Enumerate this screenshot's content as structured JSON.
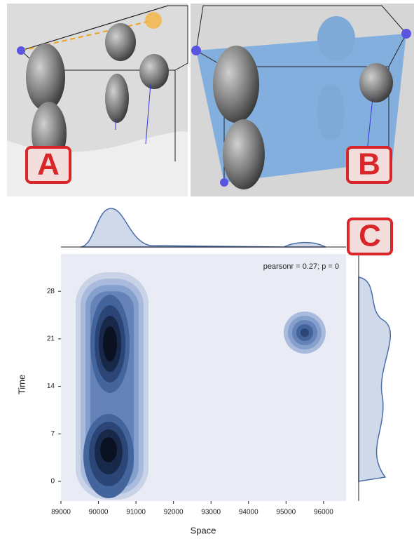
{
  "panels": {
    "a": "A",
    "b": "B",
    "c": "C"
  },
  "chart_data": {
    "type": "kde",
    "xlabel": "Space",
    "ylabel": "Time",
    "annotation": "pearsonr = 0.27; p = 0",
    "xlim": [
      89000,
      96600
    ],
    "xticks": [
      89000,
      90000,
      91000,
      92000,
      93000,
      94000,
      95000,
      96000
    ],
    "ylim": [
      -2.9,
      33.5
    ],
    "yticks": [
      0,
      7,
      14,
      21,
      28
    ],
    "color": "#4a6ea9"
  }
}
